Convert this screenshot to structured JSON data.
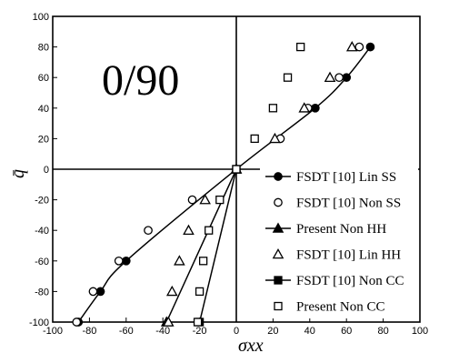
{
  "chart_data": {
    "type": "line",
    "title": "",
    "annotation": "0/90",
    "xlabel": "σxx",
    "ylabel": "q̄",
    "xlim": [
      -100,
      100
    ],
    "ylim": [
      -100,
      100
    ],
    "xticks": [
      -100,
      -80,
      -60,
      -40,
      -20,
      0,
      20,
      40,
      60,
      80,
      100
    ],
    "yticks": [
      -100,
      -80,
      -60,
      -40,
      -20,
      0,
      20,
      40,
      60,
      80,
      100
    ],
    "grid": false,
    "legend_position": "bottom-right",
    "series": [
      {
        "name": "FSDT [10] Lin SS",
        "marker": "filled-circle",
        "x": [
          -86,
          -74,
          -60,
          0,
          43,
          60,
          73
        ],
        "y": [
          -100,
          -80,
          -60,
          0,
          40,
          60,
          80
        ]
      },
      {
        "name": "FSDT [10] Non SS",
        "marker": "open-circle",
        "x": [
          -87,
          -78,
          -64,
          -48,
          -24,
          0,
          24,
          39,
          56,
          67
        ],
        "y": [
          -100,
          -80,
          -60,
          -40,
          -20,
          0,
          20,
          40,
          60,
          80
        ]
      },
      {
        "name": "Present Non HH",
        "marker": "filled-triangle",
        "x": [
          -38,
          0
        ],
        "y": [
          -100,
          0
        ]
      },
      {
        "name": "FSDT [10] Lin HH",
        "marker": "open-triangle",
        "x": [
          -37,
          -35,
          -31,
          -26,
          -17,
          0,
          21,
          37,
          51,
          63
        ],
        "y": [
          -100,
          -80,
          -60,
          -40,
          -20,
          0,
          20,
          40,
          60,
          80
        ]
      },
      {
        "name": "FSDT [10] Non CC",
        "marker": "filled-square",
        "x": [
          -20,
          0
        ],
        "y": [
          -100,
          0
        ]
      },
      {
        "name": "Present Non CC",
        "marker": "open-square",
        "x": [
          -21,
          -20,
          -18,
          -15,
          -9,
          0,
          10,
          20,
          28,
          35
        ],
        "y": [
          -100,
          -80,
          -60,
          -40,
          -20,
          0,
          20,
          40,
          60,
          80
        ]
      }
    ]
  }
}
